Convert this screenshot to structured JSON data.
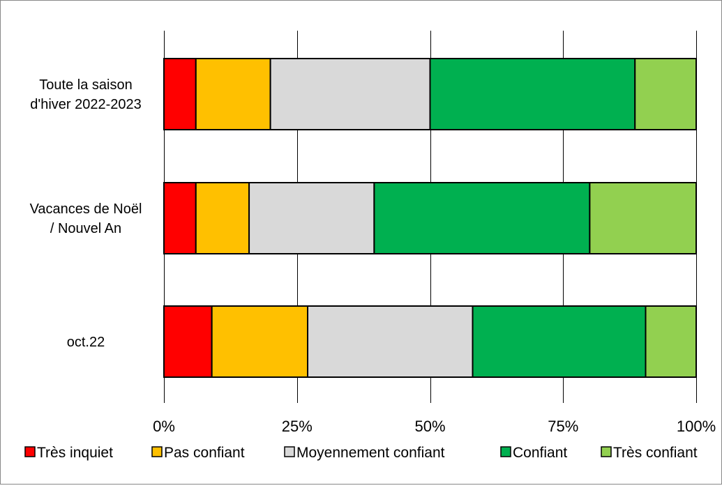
{
  "chart_data": {
    "type": "bar",
    "orientation": "horizontal",
    "stacked": true,
    "categories": [
      "Toute la saison d'hiver 2022-2023",
      "Vacances de Noël / Nouvel An",
      "oct.22"
    ],
    "category_lines": [
      [
        "Toute la saison",
        "d'hiver 2022-2023"
      ],
      [
        "Vacances de Noël",
        "/ Nouvel An"
      ],
      [
        "oct.22"
      ]
    ],
    "series": [
      {
        "name": "Très inquiet",
        "color": "#ff0000",
        "values": [
          6,
          6,
          9
        ]
      },
      {
        "name": "Pas confiant",
        "color": "#ffc000",
        "values": [
          14,
          10,
          18
        ]
      },
      {
        "name": "Moyennement confiant",
        "color": "#d9d9d9",
        "values": [
          30,
          23.5,
          31
        ]
      },
      {
        "name": "Confiant",
        "color": "#00b050",
        "values": [
          38.5,
          40.5,
          32.5
        ]
      },
      {
        "name": "Très confiant",
        "color": "#92d050",
        "values": [
          11.5,
          20,
          9.5
        ]
      }
    ],
    "x_ticks": [
      "0%",
      "25%",
      "50%",
      "75%",
      "100%"
    ],
    "xlim": [
      0,
      100
    ],
    "title": "",
    "xlabel": "",
    "ylabel": "",
    "grid": "vertical",
    "legend_position": "bottom"
  }
}
